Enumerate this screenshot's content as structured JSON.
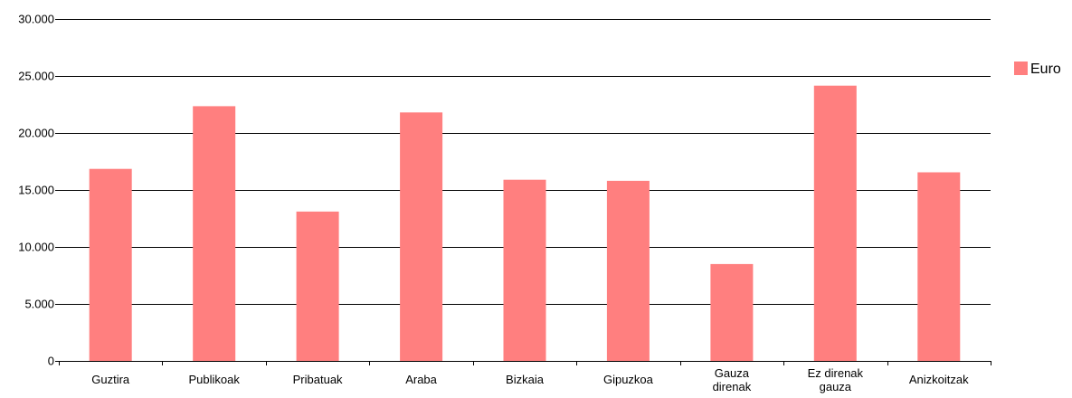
{
  "chart_data": {
    "type": "bar",
    "categories": [
      [
        "Guztira"
      ],
      [
        "Publikoak"
      ],
      [
        "Pribatuak"
      ],
      [
        "Araba"
      ],
      [
        "Bizkaia"
      ],
      [
        "Gipuzkoa"
      ],
      [
        "Gauza",
        "direnak"
      ],
      [
        "Ez direnak",
        "gauza"
      ],
      [
        "Anizkoitzak"
      ]
    ],
    "series": [
      {
        "name": "Euro",
        "values": [
          16850,
          22350,
          13100,
          21800,
          15900,
          15800,
          8500,
          24150,
          16550
        ]
      }
    ],
    "ylim": [
      0,
      30000
    ],
    "yticks": [
      0,
      5000,
      10000,
      15000,
      20000,
      25000,
      30000
    ],
    "ytick_labels": [
      "0",
      "5.000",
      "10.000",
      "15.000",
      "20.000",
      "25.000",
      "30.000"
    ],
    "grid": true,
    "legend_position": "right",
    "colors": {
      "bar": "#ff7f7f",
      "grid": "#000000",
      "axis": "#000000"
    }
  }
}
